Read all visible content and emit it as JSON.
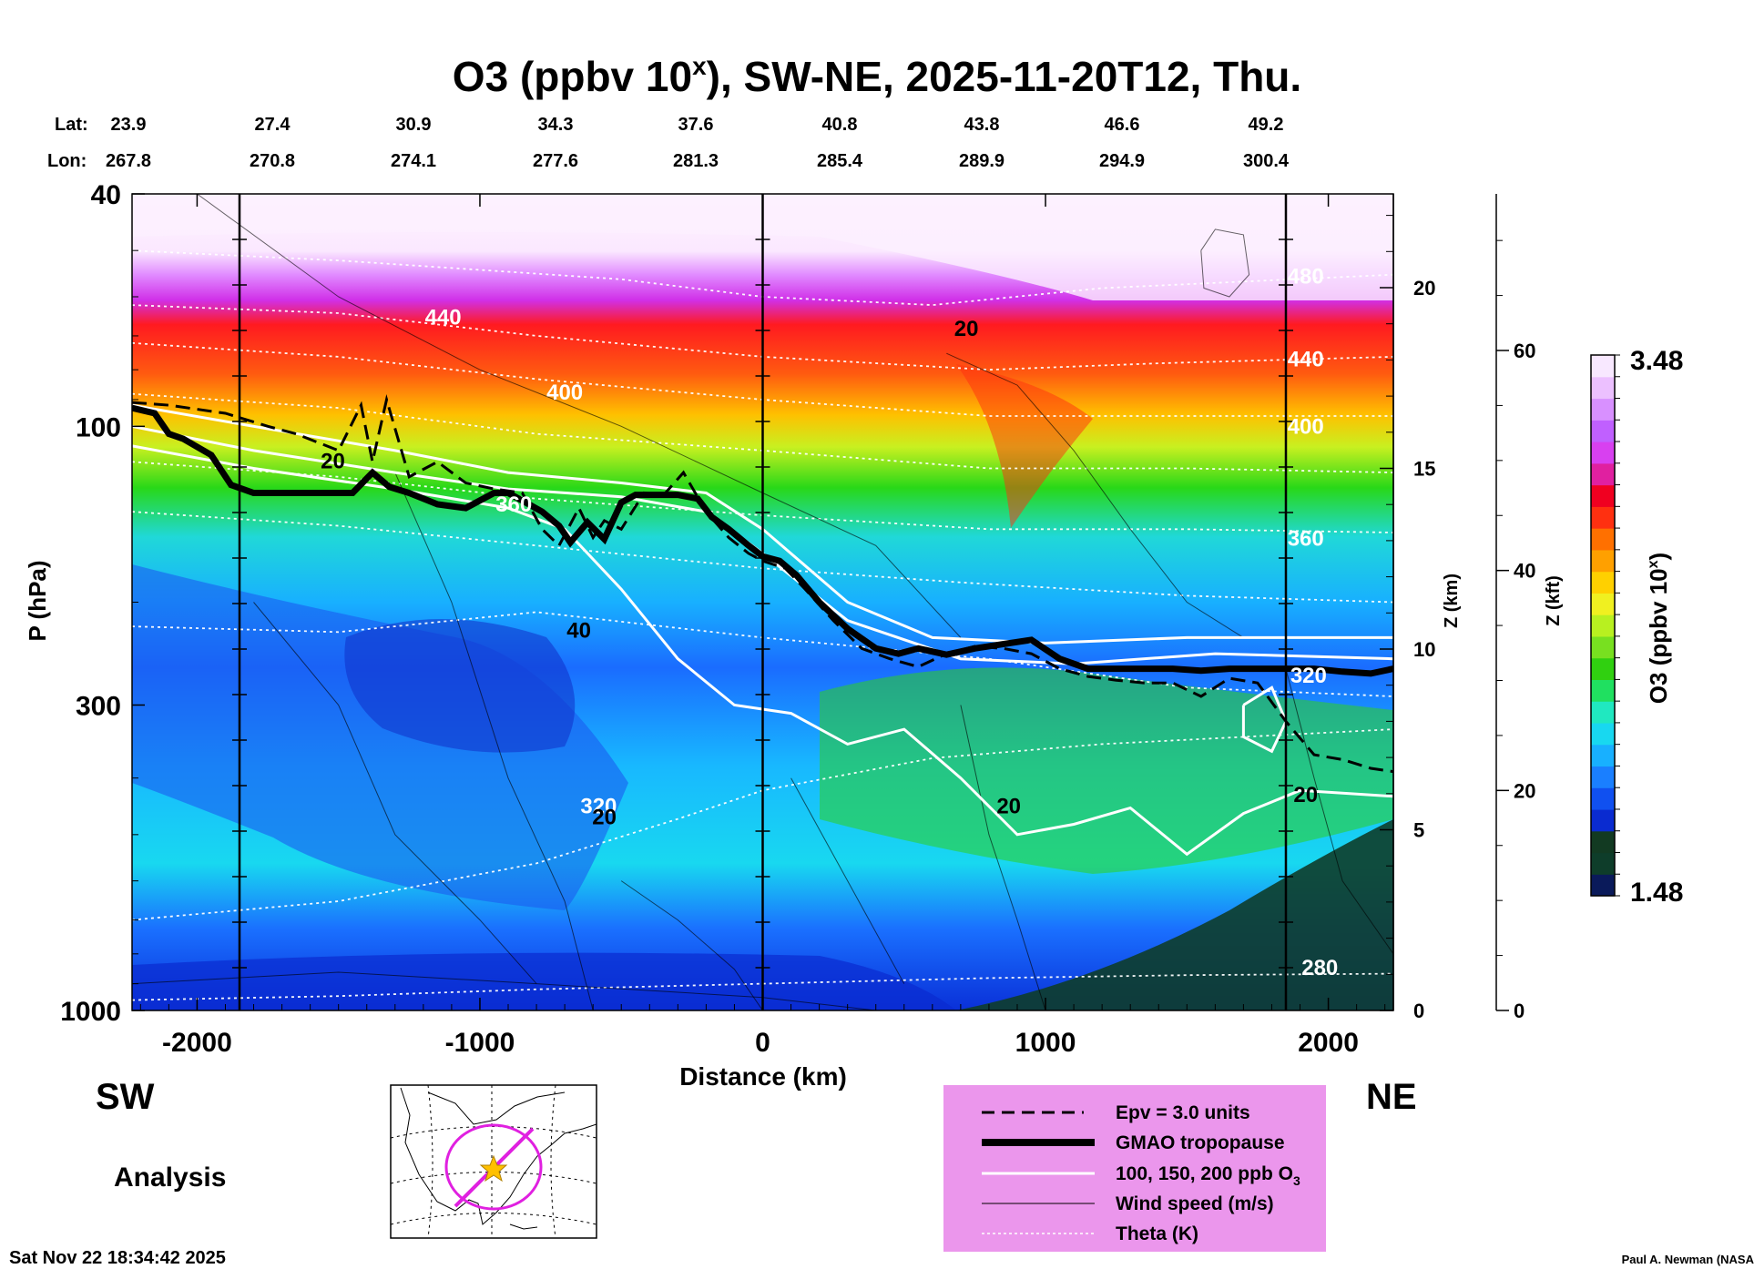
{
  "title": {
    "main": "O3 (ppbv 10",
    "superscript": "x",
    "rest": "), SW-NE, 2025-11-20T12, Thu."
  },
  "coords": {
    "lat_label": "Lat:",
    "lon_label": "Lon:",
    "lat": [
      "23.9",
      "27.4",
      "30.9",
      "34.3",
      "37.6",
      "40.8",
      "43.8",
      "46.6",
      "49.2"
    ],
    "lon": [
      "267.8",
      "270.8",
      "274.1",
      "277.6",
      "281.3",
      "285.4",
      "289.9",
      "294.9",
      "300.4"
    ]
  },
  "chart_data": {
    "type": "heatmap",
    "variable": "O3",
    "xlabel": "Distance (km)",
    "ylabel": "P (hPa)",
    "xlim": [
      -2230,
      2230
    ],
    "x_ticks": [
      "-2000",
      "-1000",
      "0",
      "1000",
      "2000"
    ],
    "x_tick_values": [
      -2000,
      -1000,
      0,
      1000,
      2000
    ],
    "ylim_hpa": [
      1000,
      40
    ],
    "y_ticks": [
      "40",
      "100",
      "300",
      "1000"
    ],
    "y_tick_values": [
      40,
      100,
      300,
      1000
    ],
    "z_km_label": "Z (km)",
    "z_km_ticks": [
      "0",
      "5",
      "10",
      "15",
      "20"
    ],
    "z_km_values": [
      0,
      5,
      10,
      15,
      20
    ],
    "z_kft_label": "Z (kft)",
    "z_kft_ticks": [
      "0",
      "20",
      "40",
      "60"
    ],
    "z_kft_values": [
      0,
      20,
      40,
      60
    ],
    "colorbar": {
      "label_main": "O3 (ppbv 10",
      "label_sup": "x",
      "label_end": ")",
      "max": "3.48",
      "min": "1.48",
      "colors": [
        "#0a1a5a",
        "#0e3d2a",
        "#123a22",
        "#0a2bd0",
        "#1050f0",
        "#1a7fff",
        "#18b0ff",
        "#18d8f0",
        "#20e8c0",
        "#20e060",
        "#30d010",
        "#78e020",
        "#b8f020",
        "#f0f020",
        "#ffd000",
        "#ffa000",
        "#ff7000",
        "#ff3010",
        "#f00020",
        "#e020a0",
        "#d840f0",
        "#c060ff",
        "#d890ff",
        "#ecc0ff",
        "#f8e8ff"
      ]
    },
    "vertical_lines_km": [
      -1850,
      0,
      1850
    ],
    "tropopause": {
      "x_km": [
        -2230,
        -2150,
        -2100,
        -2050,
        -1950,
        -1880,
        -1800,
        -1650,
        -1450,
        -1380,
        -1320,
        -1250,
        -1150,
        -1050,
        -950,
        -900,
        -850,
        -780,
        -720,
        -680,
        -620,
        -560,
        -500,
        -450,
        -400,
        -300,
        -230,
        -180,
        -120,
        -50,
        0,
        60,
        120,
        200,
        300,
        400,
        480,
        550,
        650,
        750,
        850,
        950,
        1050,
        1150,
        1250,
        1350,
        1450,
        1550,
        1650,
        1750,
        1850,
        1950,
        2050,
        2150,
        2230
      ],
      "p_hpa": [
        93,
        95,
        103,
        105,
        112,
        126,
        130,
        130,
        130,
        120,
        127,
        130,
        136,
        138,
        130,
        130,
        134,
        140,
        148,
        158,
        146,
        156,
        135,
        131,
        131,
        131,
        133,
        143,
        150,
        160,
        167,
        170,
        180,
        200,
        222,
        240,
        245,
        240,
        246,
        240,
        236,
        232,
        250,
        260,
        260,
        260,
        260,
        262,
        260,
        260,
        260,
        260,
        263,
        265,
        260
      ]
    },
    "epv": {
      "x_km": [
        -2230,
        -2100,
        -1900,
        -1750,
        -1650,
        -1500,
        -1420,
        -1380,
        -1330,
        -1250,
        -1150,
        -1050,
        -950,
        -850,
        -780,
        -720,
        -650,
        -600,
        -560,
        -500,
        -420,
        -350,
        -280,
        -200,
        -120,
        -50,
        0,
        80,
        150,
        250,
        350,
        450,
        550,
        650,
        750,
        850,
        950,
        1050,
        1150,
        1250,
        1350,
        1450,
        1550,
        1650,
        1750,
        1850,
        1950,
        2050,
        2150,
        2230
      ],
      "p_hpa": [
        91,
        92,
        95,
        100,
        103,
        110,
        92,
        115,
        90,
        122,
        115,
        125,
        128,
        130,
        150,
        160,
        138,
        155,
        145,
        150,
        130,
        131,
        120,
        140,
        155,
        165,
        170,
        175,
        190,
        215,
        240,
        250,
        258,
        245,
        238,
        240,
        245,
        260,
        268,
        272,
        275,
        275,
        290,
        270,
        275,
        320,
        365,
        372,
        385,
        390
      ]
    },
    "o3_white_contours_label": "100, 150, 200 ppb O3",
    "theta_labels": [
      "440",
      "400",
      "360",
      "320",
      "280",
      "480",
      "440",
      "400",
      "360",
      "320"
    ],
    "wind_labels": [
      "20",
      "40",
      "20",
      "20",
      "20",
      "20"
    ]
  },
  "side_labels": {
    "sw": "SW",
    "ne": "NE",
    "analysis": "Analysis"
  },
  "legend": {
    "background": "#eb96ec",
    "items": [
      {
        "label": "Epv = 3.0 units"
      },
      {
        "label": "GMAO tropopause"
      },
      {
        "label": "100, 150, 200 ppb O",
        "sub": "3"
      },
      {
        "label": "Wind speed (m/s)"
      },
      {
        "label": "Theta (K)"
      }
    ]
  },
  "footer": {
    "timestamp": "Sat Nov 22 18:34:42 2025",
    "credit": "Paul A. Newman (NASA"
  },
  "colors": {
    "magenta_track": "#e020e0",
    "star": "#ffc000"
  },
  "map_icon": "north-america-map-icon"
}
